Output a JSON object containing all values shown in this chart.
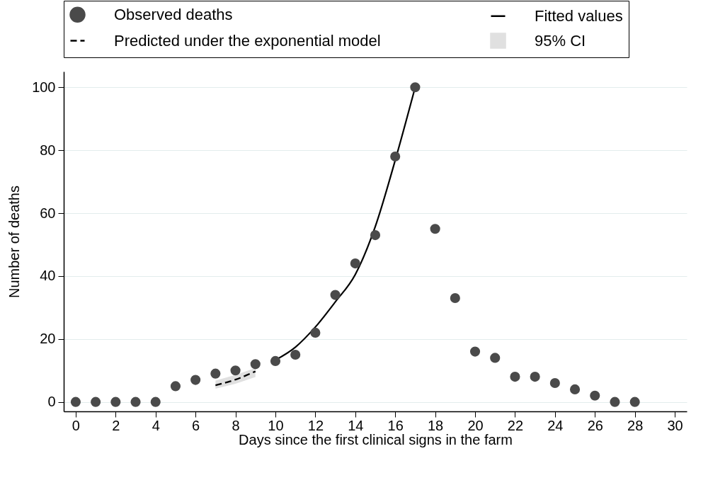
{
  "chart_data": {
    "type": "scatter",
    "xlabel": "Days since the first clinical signs in the farm",
    "ylabel": "Number of deaths",
    "xlim": [
      -0.6,
      30.6
    ],
    "xticks": [
      0,
      2,
      4,
      6,
      8,
      10,
      12,
      14,
      16,
      18,
      20,
      22,
      24,
      26,
      28,
      30
    ],
    "ylim": [
      -3,
      105
    ],
    "yticks": [
      0,
      20,
      40,
      60,
      80,
      100
    ],
    "grid": "y",
    "legend": "top",
    "series": [
      {
        "name": "Observed deaths",
        "marker": "circle",
        "color": "#4a4a4a",
        "x": [
          0,
          1,
          2,
          3,
          4,
          5,
          6,
          7,
          8,
          9,
          10,
          11,
          12,
          13,
          14,
          15,
          16,
          17,
          18,
          19,
          20,
          21,
          22,
          23,
          24,
          25,
          26,
          27,
          28
        ],
        "values": [
          0,
          0,
          0,
          0,
          0,
          5,
          7,
          9,
          10,
          12,
          13,
          15,
          22,
          34,
          44,
          53,
          78,
          100,
          55,
          33,
          16,
          14,
          8,
          8,
          6,
          4,
          2,
          0,
          0
        ]
      },
      {
        "name": "Fitted values",
        "type": "line",
        "line_style": "solid",
        "color": "#000000",
        "x": [
          10,
          11,
          12,
          13,
          14,
          15,
          16,
          17
        ],
        "values": [
          13.3,
          17.4,
          23.8,
          31.8,
          40.5,
          55.7,
          76.8,
          100
        ]
      },
      {
        "name": "Predicted under the exponential model",
        "type": "line",
        "line_style": "dashed",
        "color": "#000000",
        "x": [
          7,
          8,
          9
        ],
        "values": [
          5.3,
          7.1,
          9.7
        ]
      },
      {
        "name": "95% CI",
        "type": "area",
        "color": "#e0e0e0",
        "x": [
          7,
          8,
          9
        ],
        "values": [
          null,
          null,
          null
        ],
        "lower": [
          4.2,
          5.8,
          7.9
        ],
        "upper": [
          6.8,
          8.6,
          10.8
        ]
      }
    ]
  }
}
